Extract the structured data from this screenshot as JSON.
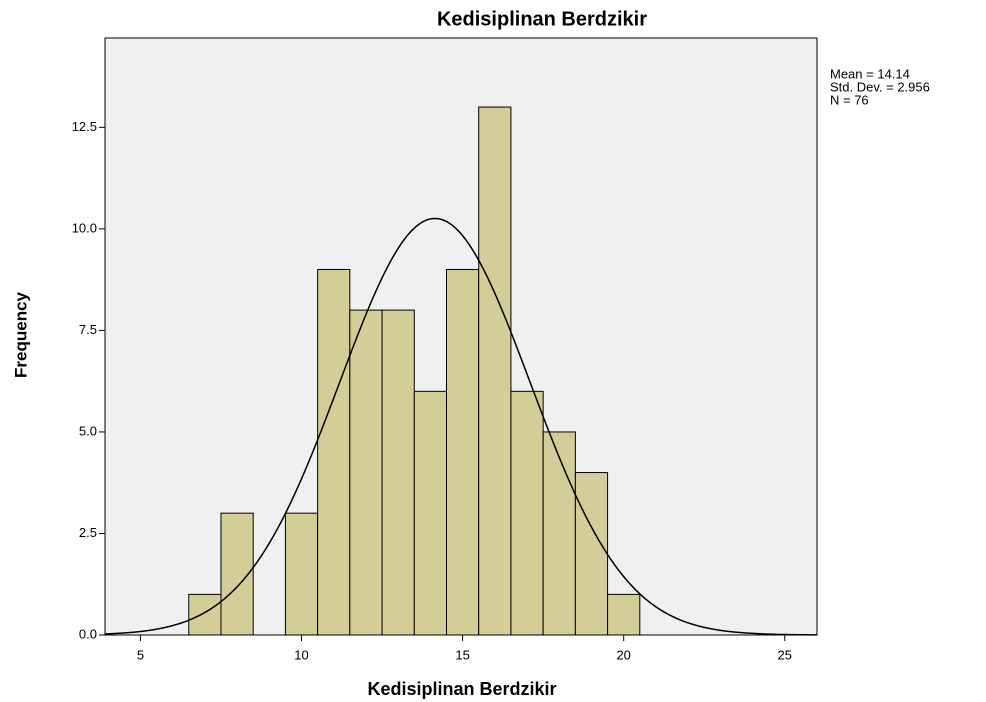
{
  "chart_data": {
    "type": "histogram",
    "title": "Kedisiplinan Berdzikir",
    "x_label": "Kedisiplinan Berdzikir",
    "y_label": "Frequency",
    "bins": [
      6.5,
      7.5,
      8.5,
      9.5,
      10.5,
      11.5,
      12.5,
      13.5,
      14.5,
      15.5,
      16.5,
      17.5,
      18.5,
      19.5,
      20.5
    ],
    "values": [
      1,
      3,
      0,
      3,
      9,
      8,
      8,
      6,
      9,
      13,
      6,
      5,
      4,
      1
    ],
    "color": "#d3ce97",
    "curve_color": "#000000",
    "xlim": [
      3.9,
      26.0
    ],
    "ylim": [
      0,
      14.7
    ],
    "xticks": [
      5,
      10,
      15,
      20,
      25
    ],
    "yticks": [
      {
        "value": 0,
        "label": "0.0"
      },
      2.5,
      {
        "value": 5,
        "label": "5.0"
      },
      7.5,
      {
        "value": 10,
        "label": "10.0"
      },
      12.5
    ],
    "stats": {
      "mean": {
        "value": 14.14,
        "label": "Mean = 14.14"
      },
      "sd": {
        "value": 2.956,
        "label": "Std. Dev. = 2.956"
      },
      "n": {
        "value": 76,
        "label": "N = 76"
      }
    }
  }
}
